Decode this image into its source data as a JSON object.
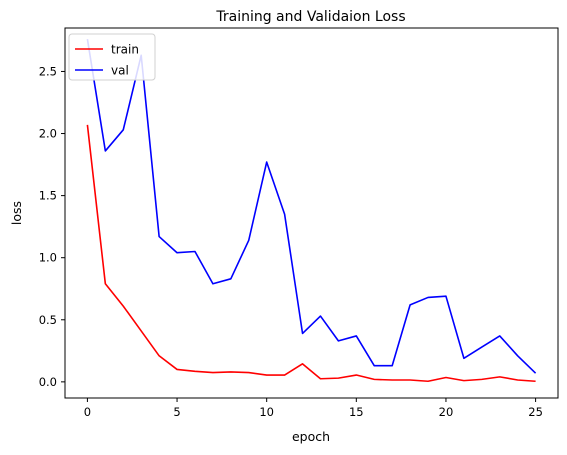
{
  "chart_data": {
    "type": "line",
    "title": "Training and Validaion Loss",
    "xlabel": "epoch",
    "ylabel": "loss",
    "xlim": [
      -1.25,
      26.25
    ],
    "ylim": [
      -0.13,
      2.85
    ],
    "x_ticks": [
      0,
      5,
      10,
      15,
      20,
      25
    ],
    "y_ticks": [
      0.0,
      0.5,
      1.0,
      1.5,
      2.0,
      2.5
    ],
    "x_tick_labels": [
      "0",
      "5",
      "10",
      "15",
      "20",
      "25"
    ],
    "y_tick_labels": [
      "0.0",
      "0.5",
      "1.0",
      "1.5",
      "2.0",
      "2.5"
    ],
    "grid": false,
    "legend_position": "top-left",
    "x": [
      0,
      1,
      2,
      3,
      4,
      5,
      6,
      7,
      8,
      9,
      10,
      11,
      12,
      13,
      14,
      15,
      16,
      17,
      18,
      19,
      20,
      21,
      22,
      23,
      24,
      25
    ],
    "series": [
      {
        "name": "train",
        "color": "#ff0000",
        "values": [
          2.07,
          0.79,
          0.61,
          0.41,
          0.21,
          0.1,
          0.085,
          0.075,
          0.08,
          0.075,
          0.055,
          0.055,
          0.145,
          0.025,
          0.03,
          0.055,
          0.02,
          0.015,
          0.015,
          0.005,
          0.035,
          0.01,
          0.02,
          0.04,
          0.015,
          0.005
        ]
      },
      {
        "name": "val",
        "color": "#0000ff",
        "values": [
          2.76,
          1.86,
          2.03,
          2.63,
          1.17,
          1.04,
          1.05,
          0.79,
          0.83,
          1.14,
          1.77,
          1.35,
          0.39,
          0.53,
          0.33,
          0.37,
          0.13,
          0.13,
          0.62,
          0.68,
          0.69,
          0.19,
          0.28,
          0.37,
          0.21,
          0.07
        ]
      }
    ]
  }
}
